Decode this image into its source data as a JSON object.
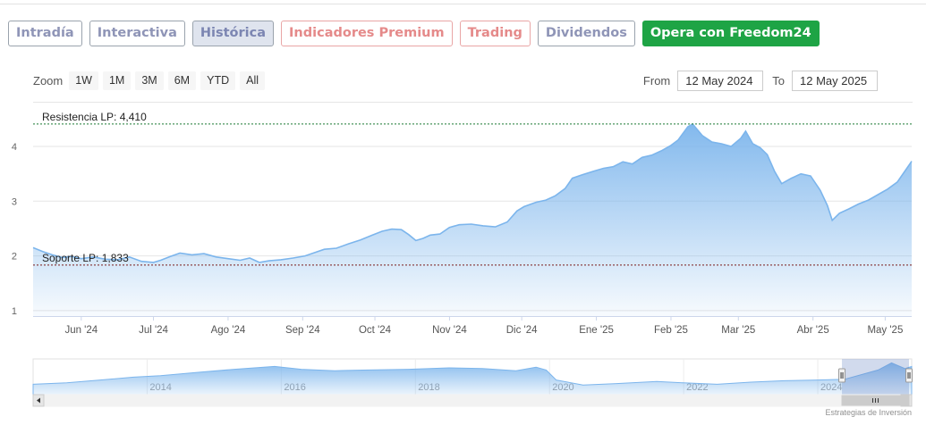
{
  "tabs": [
    {
      "label": "Intradía",
      "name": "tab-intradia",
      "style": "normal"
    },
    {
      "label": "Interactiva",
      "name": "tab-interactiva",
      "style": "normal"
    },
    {
      "label": "Histórica",
      "name": "tab-historica",
      "style": "active"
    },
    {
      "label": "Indicadores Premium",
      "name": "tab-indicadores-premium",
      "style": "premium"
    },
    {
      "label": "Trading",
      "name": "tab-trading",
      "style": "premium"
    },
    {
      "label": "Dividendos",
      "name": "tab-dividendos",
      "style": "normal"
    },
    {
      "label": "Opera con Freedom24",
      "name": "opera-freedom24-button",
      "style": "cta"
    }
  ],
  "zoom": {
    "label": "Zoom",
    "buttons": [
      "1W",
      "1M",
      "3M",
      "6M",
      "YTD",
      "All"
    ]
  },
  "range": {
    "from_label": "From",
    "from_value": "12 May 2024",
    "to_label": "To",
    "to_value": "12 May 2025"
  },
  "credit": "Estrategias de Inversión",
  "colors": {
    "line": "#7cb5ec",
    "fill_top": "#7cb5ec",
    "resistance": "#1a7a33",
    "support": "#7a1a1a",
    "cta": "#1ea445"
  },
  "chart_data": [
    {
      "type": "area",
      "x_type": "date",
      "xlim": [
        "2024-05-12",
        "2025-05-12"
      ],
      "ylim": [
        0.9,
        4.8
      ],
      "y_ticks": [
        1,
        2,
        3,
        4
      ],
      "x_tick_labels": [
        {
          "date": "2024-06-01",
          "label": "Jun '24"
        },
        {
          "date": "2024-07-01",
          "label": "Jul '24"
        },
        {
          "date": "2024-08-01",
          "label": "Ago '24"
        },
        {
          "date": "2024-09-01",
          "label": "Sep '24"
        },
        {
          "date": "2024-10-01",
          "label": "Oct '24"
        },
        {
          "date": "2024-11-01",
          "label": "Nov '24"
        },
        {
          "date": "2024-12-01",
          "label": "Dic '24"
        },
        {
          "date": "2025-01-01",
          "label": "Ene '25"
        },
        {
          "date": "2025-02-01",
          "label": "Feb '25"
        },
        {
          "date": "2025-03-01",
          "label": "Mar '25"
        },
        {
          "date": "2025-04-01",
          "label": "Abr '25"
        },
        {
          "date": "2025-05-01",
          "label": "May '25"
        }
      ],
      "grid": true,
      "series": [
        {
          "points": [
            [
              "2024-05-12",
              2.15
            ],
            [
              "2024-05-16",
              2.08
            ],
            [
              "2024-05-20",
              2.02
            ],
            [
              "2024-05-24",
              1.97
            ],
            [
              "2024-05-28",
              1.99
            ],
            [
              "2024-06-01",
              1.95
            ],
            [
              "2024-06-06",
              1.98
            ],
            [
              "2024-06-11",
              1.94
            ],
            [
              "2024-06-16",
              1.93
            ],
            [
              "2024-06-21",
              1.98
            ],
            [
              "2024-06-26",
              1.9
            ],
            [
              "2024-07-01",
              1.88
            ],
            [
              "2024-07-04",
              1.92
            ],
            [
              "2024-07-08",
              1.99
            ],
            [
              "2024-07-12",
              2.05
            ],
            [
              "2024-07-17",
              2.02
            ],
            [
              "2024-07-22",
              2.04
            ],
            [
              "2024-07-27",
              1.98
            ],
            [
              "2024-08-01",
              1.95
            ],
            [
              "2024-08-06",
              1.92
            ],
            [
              "2024-08-10",
              1.96
            ],
            [
              "2024-08-14",
              1.88
            ],
            [
              "2024-08-18",
              1.91
            ],
            [
              "2024-08-23",
              1.93
            ],
            [
              "2024-08-28",
              1.96
            ],
            [
              "2024-09-02",
              2.0
            ],
            [
              "2024-09-06",
              2.06
            ],
            [
              "2024-09-10",
              2.12
            ],
            [
              "2024-09-15",
              2.14
            ],
            [
              "2024-09-20",
              2.22
            ],
            [
              "2024-09-25",
              2.29
            ],
            [
              "2024-09-30",
              2.38
            ],
            [
              "2024-10-04",
              2.45
            ],
            [
              "2024-10-08",
              2.49
            ],
            [
              "2024-10-12",
              2.48
            ],
            [
              "2024-10-15",
              2.39
            ],
            [
              "2024-10-18",
              2.28
            ],
            [
              "2024-10-21",
              2.32
            ],
            [
              "2024-10-24",
              2.38
            ],
            [
              "2024-10-28",
              2.4
            ],
            [
              "2024-11-01",
              2.52
            ],
            [
              "2024-11-05",
              2.57
            ],
            [
              "2024-11-10",
              2.58
            ],
            [
              "2024-11-15",
              2.55
            ],
            [
              "2024-11-20",
              2.53
            ],
            [
              "2024-11-25",
              2.62
            ],
            [
              "2024-11-29",
              2.82
            ],
            [
              "2024-12-02",
              2.9
            ],
            [
              "2024-12-07",
              2.98
            ],
            [
              "2024-12-11",
              3.02
            ],
            [
              "2024-12-15",
              3.1
            ],
            [
              "2024-12-19",
              3.23
            ],
            [
              "2024-12-22",
              3.42
            ],
            [
              "2024-12-26",
              3.48
            ],
            [
              "2024-12-31",
              3.55
            ],
            [
              "2025-01-04",
              3.6
            ],
            [
              "2025-01-08",
              3.63
            ],
            [
              "2025-01-12",
              3.72
            ],
            [
              "2025-01-16",
              3.68
            ],
            [
              "2025-01-20",
              3.8
            ],
            [
              "2025-01-24",
              3.84
            ],
            [
              "2025-01-28",
              3.92
            ],
            [
              "2025-02-01",
              4.02
            ],
            [
              "2025-02-04",
              4.12
            ],
            [
              "2025-02-08",
              4.36
            ],
            [
              "2025-02-10",
              4.41
            ],
            [
              "2025-02-14",
              4.2
            ],
            [
              "2025-02-18",
              4.08
            ],
            [
              "2025-02-22",
              4.05
            ],
            [
              "2025-02-26",
              4.0
            ],
            [
              "2025-03-02",
              4.15
            ],
            [
              "2025-03-04",
              4.28
            ],
            [
              "2025-03-07",
              4.05
            ],
            [
              "2025-03-10",
              3.98
            ],
            [
              "2025-03-13",
              3.85
            ],
            [
              "2025-03-16",
              3.55
            ],
            [
              "2025-03-19",
              3.32
            ],
            [
              "2025-03-23",
              3.42
            ],
            [
              "2025-03-27",
              3.5
            ],
            [
              "2025-03-31",
              3.46
            ],
            [
              "2025-04-04",
              3.2
            ],
            [
              "2025-04-07",
              2.92
            ],
            [
              "2025-04-09",
              2.65
            ],
            [
              "2025-04-12",
              2.78
            ],
            [
              "2025-04-16",
              2.86
            ],
            [
              "2025-04-20",
              2.95
            ],
            [
              "2025-04-24",
              3.02
            ],
            [
              "2025-04-28",
              3.12
            ],
            [
              "2025-05-02",
              3.22
            ],
            [
              "2025-05-06",
              3.35
            ],
            [
              "2025-05-10",
              3.6
            ],
            [
              "2025-05-12",
              3.73
            ]
          ]
        }
      ],
      "annotations": [
        {
          "label": "Resistencia LP: 4,410",
          "value": 4.41,
          "kind": "resistance"
        },
        {
          "label": "Soporte LP: 1,833",
          "value": 1.833,
          "kind": "support"
        }
      ]
    },
    {
      "type": "area",
      "role": "navigator",
      "x_type": "year",
      "xlim": [
        2012.3,
        2025.4
      ],
      "tick_labels": [
        "2014",
        "2016",
        "2018",
        "2020",
        "2022",
        "2024"
      ],
      "tick_values": [
        2014,
        2016,
        2018,
        2020,
        2022,
        2024
      ],
      "selected_range": [
        2024.36,
        2025.36
      ],
      "series": [
        {
          "points": [
            [
              2012.3,
              1.2
            ],
            [
              2012.8,
              1.4
            ],
            [
              2013.3,
              1.8
            ],
            [
              2013.8,
              2.2
            ],
            [
              2014.2,
              2.4
            ],
            [
              2014.8,
              2.9
            ],
            [
              2015.3,
              3.3
            ],
            [
              2015.9,
              3.7
            ],
            [
              2016.3,
              3.3
            ],
            [
              2016.8,
              3.1
            ],
            [
              2017.3,
              3.2
            ],
            [
              2017.9,
              3.3
            ],
            [
              2018.5,
              3.5
            ],
            [
              2019.0,
              3.4
            ],
            [
              2019.5,
              3.1
            ],
            [
              2019.8,
              3.6
            ],
            [
              2019.95,
              3.2
            ],
            [
              2020.1,
              1.8
            ],
            [
              2020.5,
              1.1
            ],
            [
              2021.0,
              1.3
            ],
            [
              2021.6,
              1.6
            ],
            [
              2022.0,
              1.4
            ],
            [
              2022.5,
              1.2
            ],
            [
              2023.0,
              1.5
            ],
            [
              2023.5,
              1.7
            ],
            [
              2024.0,
              1.8
            ],
            [
              2024.4,
              1.9
            ],
            [
              2024.9,
              3.2
            ],
            [
              2025.1,
              4.2
            ],
            [
              2025.3,
              3.4
            ],
            [
              2025.4,
              3.7
            ]
          ]
        }
      ]
    }
  ]
}
